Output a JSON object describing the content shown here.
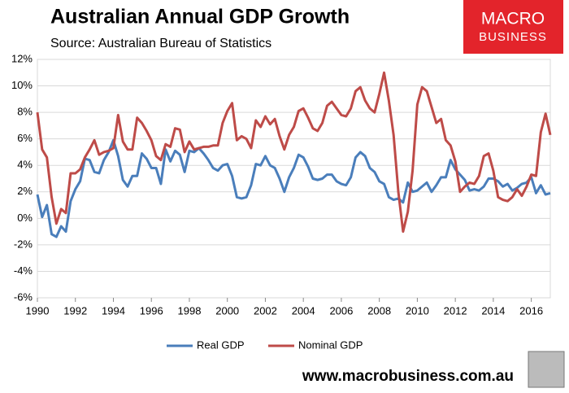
{
  "chart_data": {
    "type": "line",
    "title": "Australian Annual GDP Growth",
    "subtitle": "Source: Australian Bureau of Statistics",
    "logo": [
      "MACRO",
      "BUSINESS"
    ],
    "footer": "www.macrobusiness.com.au",
    "x": [
      1990,
      1990.25,
      1990.5,
      1990.75,
      1991,
      1991.25,
      1991.5,
      1991.75,
      1992,
      1992.25,
      1992.5,
      1992.75,
      1993,
      1993.25,
      1993.5,
      1993.75,
      1994,
      1994.25,
      1994.5,
      1994.75,
      1995,
      1995.25,
      1995.5,
      1995.75,
      1996,
      1996.25,
      1996.5,
      1996.75,
      1997,
      1997.25,
      1997.5,
      1997.75,
      1998,
      1998.25,
      1998.5,
      1998.75,
      1999,
      1999.25,
      1999.5,
      1999.75,
      2000,
      2000.25,
      2000.5,
      2000.75,
      2001,
      2001.25,
      2001.5,
      2001.75,
      2002,
      2002.25,
      2002.5,
      2002.75,
      2003,
      2003.25,
      2003.5,
      2003.75,
      2004,
      2004.25,
      2004.5,
      2004.75,
      2005,
      2005.25,
      2005.5,
      2005.75,
      2006,
      2006.25,
      2006.5,
      2006.75,
      2007,
      2007.25,
      2007.5,
      2007.75,
      2008,
      2008.25,
      2008.5,
      2008.75,
      2009,
      2009.25,
      2009.5,
      2009.75,
      2010,
      2010.25,
      2010.5,
      2010.75,
      2011,
      2011.25,
      2011.5,
      2011.75,
      2012,
      2012.25,
      2012.5,
      2012.75,
      2013,
      2013.25,
      2013.5,
      2013.75,
      2014,
      2014.25,
      2014.5,
      2014.75,
      2015,
      2015.25,
      2015.5,
      2015.75,
      2016,
      2016.25,
      2016.5,
      2016.75,
      2017
    ],
    "series": [
      {
        "name": "Real GDP",
        "color": "#4a7ebb",
        "values": [
          1.8,
          0.1,
          1.0,
          -1.2,
          -1.4,
          -0.6,
          -1.0,
          1.3,
          2.2,
          2.8,
          4.5,
          4.4,
          3.5,
          3.4,
          4.4,
          5.0,
          5.9,
          4.7,
          2.9,
          2.4,
          3.2,
          3.2,
          4.9,
          4.5,
          3.8,
          3.8,
          2.6,
          5.2,
          4.3,
          5.1,
          4.8,
          3.5,
          5.1,
          5.0,
          5.3,
          4.9,
          4.4,
          3.8,
          3.6,
          4.0,
          4.1,
          3.2,
          1.6,
          1.5,
          1.6,
          2.5,
          4.1,
          4.0,
          4.7,
          4.0,
          3.8,
          3.0,
          2.0,
          3.1,
          3.8,
          4.8,
          4.6,
          3.9,
          3.0,
          2.9,
          3.0,
          3.3,
          3.3,
          2.8,
          2.6,
          2.5,
          3.1,
          4.6,
          5.0,
          4.7,
          3.8,
          3.5,
          2.8,
          2.6,
          1.6,
          1.4,
          1.5,
          1.2,
          2.7,
          2.0,
          2.1,
          2.4,
          2.7,
          2.0,
          2.5,
          3.1,
          3.1,
          4.4,
          3.7,
          3.3,
          2.9,
          2.1,
          2.2,
          2.1,
          2.4,
          3.0,
          3.0,
          2.8,
          2.4,
          2.6,
          2.1,
          2.3,
          2.6,
          2.7,
          3.1,
          1.9,
          2.5,
          1.8,
          1.9
        ]
      },
      {
        "name": "Nominal GDP",
        "color": "#be4b48",
        "values": [
          8.0,
          5.2,
          4.6,
          1.6,
          -0.4,
          0.7,
          0.4,
          3.4,
          3.4,
          3.7,
          4.6,
          5.2,
          5.9,
          4.8,
          5.0,
          5.1,
          5.3,
          7.8,
          5.8,
          5.2,
          5.2,
          7.6,
          7.2,
          6.6,
          5.9,
          4.7,
          4.4,
          5.6,
          5.4,
          6.8,
          6.7,
          5.0,
          5.8,
          5.2,
          5.3,
          5.4,
          5.4,
          5.5,
          5.5,
          7.2,
          8.1,
          8.7,
          5.9,
          6.2,
          6.0,
          5.3,
          7.4,
          6.9,
          7.7,
          7.1,
          7.5,
          6.2,
          5.2,
          6.3,
          6.9,
          8.1,
          8.3,
          7.6,
          6.8,
          6.6,
          7.2,
          8.5,
          8.8,
          8.3,
          7.8,
          7.7,
          8.3,
          9.6,
          9.9,
          8.9,
          8.3,
          8.0,
          9.4,
          11.0,
          8.9,
          6.3,
          2.0,
          -1.0,
          0.5,
          3.6,
          8.6,
          9.9,
          9.6,
          8.4,
          7.2,
          7.5,
          5.9,
          5.5,
          4.3,
          2.0,
          2.4,
          2.7,
          2.6,
          3.2,
          4.7,
          4.9,
          3.6,
          1.6,
          1.4,
          1.3,
          1.6,
          2.2,
          1.7,
          2.4,
          3.3,
          3.2,
          6.5,
          7.9,
          6.3
        ]
      }
    ],
    "xlim": [
      1990,
      2017
    ],
    "xticks": [
      1990,
      1992,
      1994,
      1996,
      1998,
      2000,
      2002,
      2004,
      2006,
      2008,
      2010,
      2012,
      2014,
      2016
    ],
    "ylim": [
      -6,
      12
    ],
    "yticks": [
      {
        "value": -6,
        "label": "-6%"
      },
      {
        "value": -4,
        "label": "-4%"
      },
      {
        "value": -2,
        "label": "-2%"
      },
      {
        "value": 0,
        "label": "0%"
      },
      {
        "value": 2,
        "label": "2%"
      },
      {
        "value": 4,
        "label": "4%"
      },
      {
        "value": 6,
        "label": "6%"
      },
      {
        "value": 8,
        "label": "8%"
      },
      {
        "value": 10,
        "label": "10%"
      },
      {
        "value": 12,
        "label": "12%"
      }
    ],
    "grid": true,
    "legend": "bottom"
  }
}
